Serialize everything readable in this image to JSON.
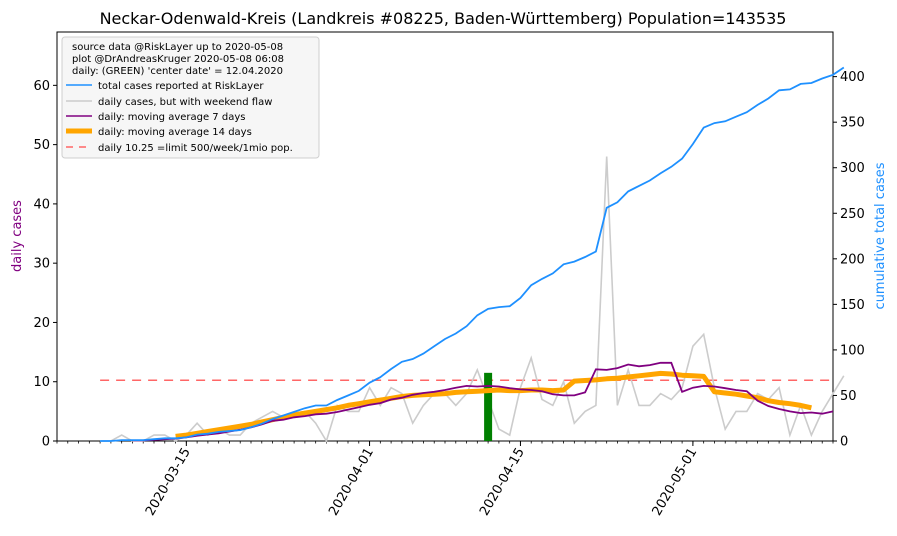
{
  "chart_data": {
    "type": "line",
    "title": "Neckar-Odenwald-Kreis (Landkreis #08225, Baden-Württemberg) Population=143535",
    "ylabel_left": "daily cases",
    "ylabel_right": "cumulative total cases",
    "left_ylim": [
      0,
      69
    ],
    "right_ylim": [
      0,
      449
    ],
    "xlim": [
      "2020-03-03",
      "2020-05-14"
    ],
    "left_ticks": [
      0,
      10,
      20,
      30,
      40,
      50,
      60
    ],
    "right_ticks": [
      0,
      50,
      100,
      150,
      200,
      250,
      300,
      350,
      400
    ],
    "x_ticks": [
      "2020-03-15",
      "2020-04-01",
      "2020-04-15",
      "2020-05-01"
    ],
    "legend_position": "upper-left",
    "legend_header": [
      "source data @RiskLayer up to 2020-05-08",
      "plot @DrAndreasKruger 2020-05-08 06:08",
      "daily: (GREEN) 'center date' = 12.04.2020"
    ],
    "colors": {
      "total": "#1e90ff",
      "daily": "#cccccc",
      "ma7": "#800080",
      "ma14": "#ffa500",
      "limit": "#ff6666",
      "center": "#008000",
      "left_label": "#800080",
      "right_label": "#1e90ff"
    },
    "series": [
      {
        "name": "total cases reported at RiskLayer",
        "axis": "right",
        "start_date": "2020-03-07",
        "values": [
          0,
          0,
          1,
          1,
          1,
          2,
          3,
          3,
          4,
          7,
          8,
          10,
          11,
          12,
          15,
          19,
          24,
          28,
          32,
          36,
          39,
          39,
          45,
          50,
          55,
          64,
          70,
          79,
          87,
          90,
          96,
          104,
          112,
          118,
          126,
          138,
          145,
          147,
          148,
          157,
          171,
          178,
          184,
          194,
          197,
          202,
          208,
          256,
          262,
          274,
          280,
          286,
          294,
          301,
          310,
          326,
          344,
          349,
          351,
          356,
          361,
          369,
          376,
          385,
          386,
          392,
          393,
          398,
          402,
          410
        ]
      },
      {
        "name": "daily cases, but with weekend flaw",
        "axis": "left",
        "start_date": "2020-03-07",
        "values": [
          0,
          0,
          1,
          0,
          0,
          1,
          1,
          0,
          1,
          3,
          1,
          2,
          1,
          1,
          3,
          4,
          5,
          4,
          4,
          5,
          3,
          0,
          6,
          5,
          5,
          9,
          6,
          9,
          8,
          3,
          6,
          8,
          8,
          6,
          8,
          12,
          7,
          2,
          1,
          9,
          14,
          7,
          6,
          10,
          3,
          5,
          6,
          48,
          6,
          12,
          6,
          6,
          8,
          7,
          9,
          16,
          18,
          9,
          2,
          5,
          5,
          8,
          7,
          9,
          1,
          6,
          1,
          5,
          8,
          11
        ]
      },
      {
        "name": "daily: moving average 7 days",
        "axis": "left",
        "start_date": "2020-03-07",
        "values": [
          null,
          null,
          null,
          0.1,
          0.1,
          0.2,
          0.3,
          0.4,
          0.6,
          0.9,
          1.1,
          1.3,
          1.6,
          1.9,
          2.3,
          2.8,
          3.4,
          3.6,
          4.0,
          4.2,
          4.5,
          4.6,
          4.9,
          5.3,
          5.7,
          6.1,
          6.4,
          7.0,
          7.3,
          7.8,
          8.1,
          8.3,
          8.6,
          9.0,
          9.3,
          9.2,
          9.3,
          9.2,
          8.9,
          8.7,
          8.6,
          8.4,
          7.9,
          7.7,
          7.7,
          8.2,
          12.1,
          12.0,
          12.3,
          12.9,
          12.6,
          12.8,
          13.2,
          13.2,
          8.3,
          9.0,
          9.3,
          9.2,
          8.9,
          8.6,
          8.4,
          6.8,
          5.9,
          5.4,
          5.0,
          4.7,
          4.8,
          4.6,
          5.0,
          null
        ]
      },
      {
        "name": "daily: moving average 14 days",
        "axis": "left",
        "start_date": "2020-03-07",
        "values": [
          null,
          null,
          null,
          null,
          null,
          null,
          null,
          0.8,
          1.0,
          1.3,
          1.6,
          1.9,
          2.2,
          2.5,
          2.8,
          3.2,
          3.6,
          4.0,
          4.4,
          4.7,
          5.0,
          5.3,
          5.6,
          6.0,
          6.3,
          6.6,
          6.9,
          7.2,
          7.5,
          7.7,
          7.8,
          7.9,
          8.0,
          8.2,
          8.3,
          8.4,
          8.5,
          8.6,
          8.5,
          8.5,
          8.6,
          8.6,
          8.5,
          8.6,
          10.1,
          10.2,
          10.3,
          10.5,
          10.6,
          10.8,
          11.0,
          11.2,
          11.4,
          11.3,
          11.1,
          11.0,
          10.9,
          8.3,
          8.1,
          7.9,
          7.6,
          7.3,
          6.8,
          6.5,
          6.3,
          6.0,
          5.6,
          null,
          null,
          null
        ]
      },
      {
        "name": "daily 10.25 =limit 500/week/1mio pop.",
        "axis": "left",
        "value": 10.25,
        "range": [
          "2020-03-07",
          "2020-05-14"
        ]
      }
    ],
    "center_bar": {
      "date": "2020-04-12",
      "value": 11.5,
      "axis": "left"
    }
  }
}
